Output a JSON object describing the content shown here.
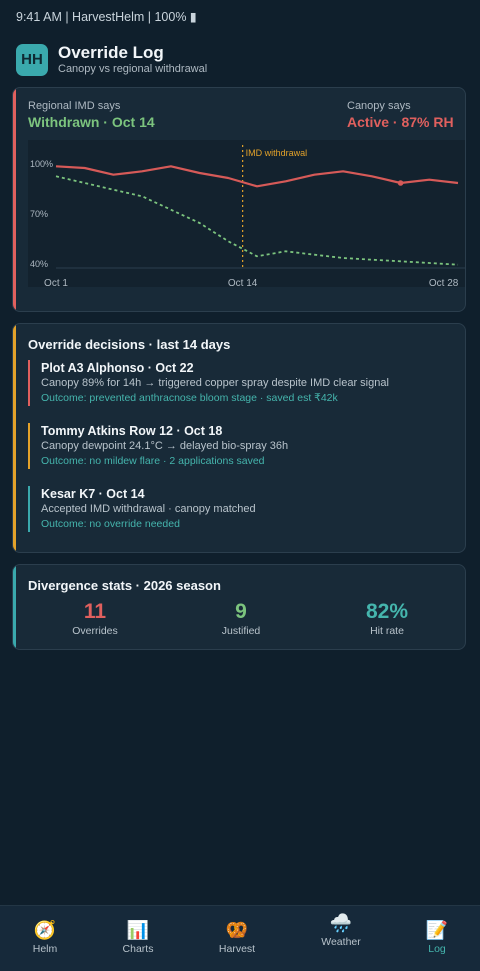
{
  "status_bar": {
    "text": "9:41 AM | HarvestHelm | 100% ▮"
  },
  "header": {
    "logo": "HH",
    "title": "Override Log",
    "subtitle": "Canopy vs regional withdrawal"
  },
  "comparison": {
    "left_label": "Regional IMD says",
    "left_value": "Withdrawn · Oct 14",
    "right_label": "Canopy says",
    "right_value": "Active · 87% RH",
    "colors": {
      "withdrawn": "#7cc47e",
      "active": "#e0605e"
    }
  },
  "chart_data": {
    "type": "line",
    "x_ticks": [
      "Oct 1",
      "Oct 14",
      "Oct 28"
    ],
    "y_ticks": [
      "100%",
      "70%",
      "40%"
    ],
    "ylim": [
      40,
      100
    ],
    "annotation": "IMD withdrawal",
    "series": [
      {
        "style": "solid",
        "color": "#d65a58",
        "x": [
          1,
          3,
          5,
          7,
          9,
          11,
          13,
          15,
          17,
          19,
          21,
          23,
          25,
          27,
          29
        ],
        "values": [
          98,
          97,
          93,
          95,
          98,
          94,
          91,
          86,
          89,
          93,
          95,
          92,
          88,
          90,
          88
        ],
        "marker_index": 12
      },
      {
        "style": "dashed",
        "color": "#7cc47e",
        "x": [
          1,
          3,
          5,
          7,
          9,
          11,
          13,
          15,
          17,
          19,
          21,
          23,
          25,
          27,
          29
        ],
        "values": [
          92,
          88,
          84,
          80,
          72,
          64,
          53,
          44,
          47,
          45,
          43,
          42,
          41,
          40,
          39
        ]
      }
    ]
  },
  "decisions": {
    "title": "Override decisions · last 14 days",
    "items": [
      {
        "title": "Plot A3 Alphonso · Oct 22",
        "desc": "Canopy 89% for 14h → triggered copper spray despite IMD clear signal",
        "outcome": "Outcome: prevented anthracnose bloom stage · saved est ₹42k",
        "color": "#e0605e"
      },
      {
        "title": "Tommy Atkins Row 12 · Oct 18",
        "desc": "Canopy dewpoint 24.1°C → delayed bio-spray 36h",
        "outcome": "Outcome: no mildew flare · 2 applications saved",
        "color": "#e3a22a"
      },
      {
        "title": "Kesar K7 · Oct 14",
        "desc": "Accepted IMD withdrawal · canopy matched",
        "outcome": "Outcome: no override needed",
        "color": "#3aa9ad"
      }
    ]
  },
  "stats": {
    "title": "Divergence stats · 2026 season",
    "items": [
      {
        "value": "11",
        "label": "Overrides",
        "color": "#e0605e"
      },
      {
        "value": "9",
        "label": "Justified",
        "color": "#7cc47e"
      },
      {
        "value": "82%",
        "label": "Hit rate",
        "color": "#45b5ad"
      }
    ]
  },
  "nav": {
    "items": [
      {
        "icon": "🧭",
        "label": "Helm",
        "icon_name": "compass-icon"
      },
      {
        "icon": "📊",
        "label": "Charts",
        "icon_name": "bar-chart-icon"
      },
      {
        "icon": "🥨",
        "label": "Harvest",
        "icon_name": "pretzel-icon"
      },
      {
        "icon": "🌧️",
        "label": "Weather",
        "icon_name": "rain-cloud-icon"
      },
      {
        "icon": "📝",
        "label": "Log",
        "icon_name": "memo-icon"
      }
    ],
    "active_index": 4,
    "active_color": "#45b5ad"
  },
  "accent_colors": {
    "card1": "#e0605e",
    "card2": "#e3a22a",
    "card3": "#3aa9ad"
  }
}
